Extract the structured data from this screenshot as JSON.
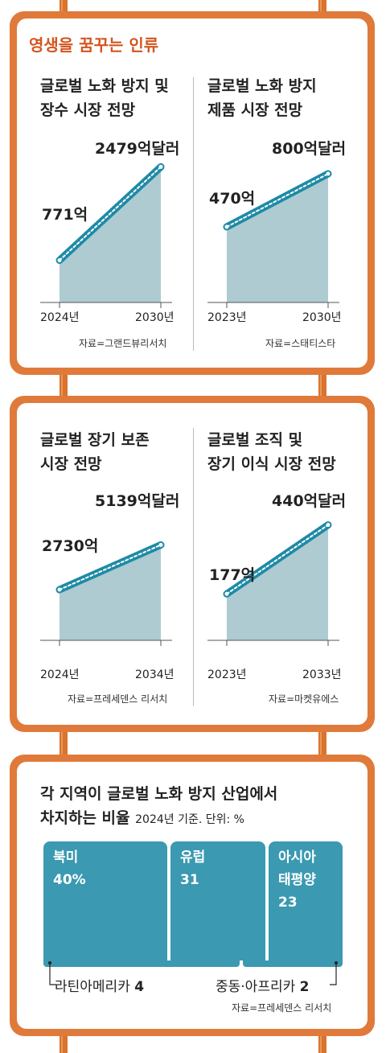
{
  "header": {
    "title": "영생을 꿈꾸는 인류"
  },
  "charts": [
    {
      "title": "글로벌 노화 방지 및\n장수 시장 전망",
      "start_label": "771억",
      "end_label": "2479억달러",
      "x_start": "2024년",
      "x_end": "2030년",
      "source": "자료=그랜드뷰리서치"
    },
    {
      "title": "글로벌 노화 방지\n제품 시장 전망",
      "start_label": "470억",
      "end_label": "800억달러",
      "x_start": "2023년",
      "x_end": "2030년",
      "source": "자료=스태티스타"
    },
    {
      "title": "글로벌 장기 보존\n시장 전망",
      "start_label": "2730억",
      "end_label": "5139억달러",
      "x_start": "2024년",
      "x_end": "2034년",
      "source": "자료=프레세덴스 리서치"
    },
    {
      "title": "글로벌 조직 및\n장기 이식 시장 전망",
      "start_label": "177억",
      "end_label": "440억달러",
      "x_start": "2023년",
      "x_end": "2033년",
      "source": "자료=마켓유에스"
    }
  ],
  "regions": {
    "title": "각 지역이 글로벌 노화 방지 산업에서",
    "title_line2": "차지하는 비율",
    "subtitle": "2024년 기준. 단위: %",
    "blocks": [
      {
        "name": "북미",
        "value": "40%"
      },
      {
        "name": "유럽",
        "value": "31"
      },
      {
        "name": "아시아\n태평양",
        "value": "23"
      }
    ],
    "small": [
      {
        "name": "라틴아메리카",
        "value": "4"
      },
      {
        "name": "중동·아프리카",
        "value": "2"
      }
    ],
    "source": "자료=프레세덴스 리서치"
  },
  "chart_data": [
    {
      "type": "area",
      "title": "글로벌 노화 방지 및 장수 시장 전망",
      "x": [
        "2024년",
        "2030년"
      ],
      "values": [
        771,
        2479
      ],
      "unit": "억달러",
      "series": [
        {
          "values": [
            771,
            2479
          ]
        }
      ]
    },
    {
      "type": "area",
      "title": "글로벌 노화 방지 제품 시장 전망",
      "x": [
        "2023년",
        "2030년"
      ],
      "values": [
        470,
        800
      ],
      "unit": "억달러",
      "series": [
        {
          "values": [
            470,
            800
          ]
        }
      ]
    },
    {
      "type": "area",
      "title": "글로벌 장기 보존 시장 전망",
      "x": [
        "2024년",
        "2034년"
      ],
      "values": [
        2730,
        5139
      ],
      "unit": "억달러",
      "series": [
        {
          "values": [
            2730,
            5139
          ]
        }
      ]
    },
    {
      "type": "area",
      "title": "글로벌 조직 및 장기 이식 시장 전망",
      "x": [
        "2023년",
        "2033년"
      ],
      "values": [
        177,
        440
      ],
      "unit": "억달러",
      "series": [
        {
          "values": [
            177,
            440
          ]
        }
      ]
    },
    {
      "type": "bar",
      "title": "각 지역이 글로벌 노화 방지 산업에서 차지하는 비율",
      "subtitle": "2024년 기준. 단위: %",
      "categories": [
        "북미",
        "유럽",
        "아시아 태평양",
        "라틴아메리카",
        "중동·아프리카"
      ],
      "values": [
        40,
        31,
        23,
        4,
        2
      ]
    }
  ],
  "colors": {
    "frame": "#e07a3a",
    "accent_text": "#d4551f",
    "line": "#1d8aa6",
    "area": "#aecbd2",
    "block": "#3b99b1"
  }
}
